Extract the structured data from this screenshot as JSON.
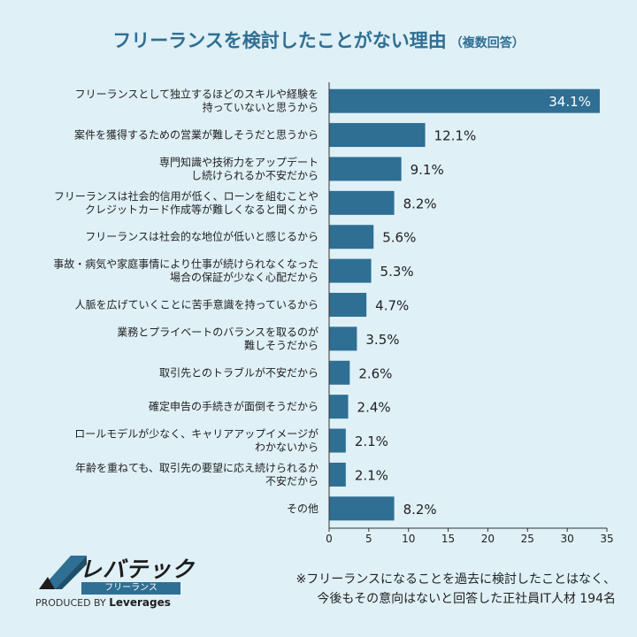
{
  "title": "フリーランスを検討したことがない理由",
  "subtitle": "（複数回答）",
  "chart_data": {
    "type": "bar",
    "orientation": "horizontal",
    "categories": [
      [
        "フリーランスとして独立するほどのスキルや経験を",
        "持っていないと思うから"
      ],
      [
        "案件を獲得するための営業が難しそうだと思うから"
      ],
      [
        "専門知識や技術力をアップデート",
        "し続けられるか不安だから"
      ],
      [
        "フリーランスは社会的信用が低く、ローンを組むことや",
        "クレジットカード作成等が難しくなると聞くから"
      ],
      [
        "フリーランスは社会的な地位が低いと感じるから"
      ],
      [
        "事故・病気や家庭事情により仕事が続けられなくなった",
        "場合の保証が少なく心配だから"
      ],
      [
        "人脈を広げていくことに苦手意識を持っているから"
      ],
      [
        "業務とプライベートのバランスを取るのが",
        "難しそうだから"
      ],
      [
        "取引先とのトラブルが不安だから"
      ],
      [
        "確定申告の手続きが面倒そうだから"
      ],
      [
        "ロールモデルが少なく、キャリアアップイメージが",
        "わかないから"
      ],
      [
        "年齢を重ねても、取引先の要望に応え続けられるか",
        "不安だから"
      ],
      [
        "その他"
      ]
    ],
    "values": [
      34.1,
      12.1,
      9.1,
      8.2,
      5.6,
      5.3,
      4.7,
      3.5,
      2.6,
      2.4,
      2.1,
      2.1,
      8.2
    ],
    "value_labels": [
      "34.1%",
      "12.1%",
      "9.1%",
      "8.2%",
      "5.6%",
      "5.3%",
      "4.7%",
      "3.5%",
      "2.6%",
      "2.4%",
      "2.1%",
      "2.1%",
      "8.2%"
    ],
    "xlim": [
      0,
      35
    ],
    "xticks": [
      0,
      5,
      10,
      15,
      20,
      25,
      30,
      35
    ],
    "grid": false,
    "bar_color": "#2f6f93"
  },
  "logo": {
    "main": "レバテック",
    "sub": "フリーランス",
    "produced_by": "PRODUCED BY",
    "brand": "Leverages"
  },
  "footnote": [
    "※フリーランスになることを過去に検討したことはなく、",
    "今後もその意向はないと回答した正社員IT人材 194名"
  ],
  "colors": {
    "background": "#dff0f7",
    "title": "#2f6f93",
    "bar": "#2f6f93"
  }
}
